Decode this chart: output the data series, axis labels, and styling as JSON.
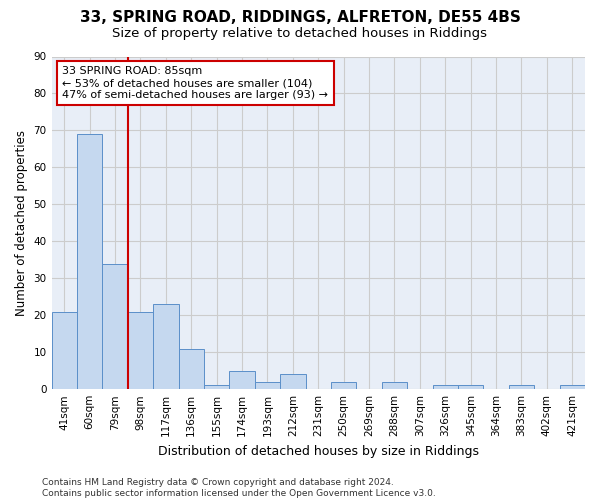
{
  "title": "33, SPRING ROAD, RIDDINGS, ALFRETON, DE55 4BS",
  "subtitle": "Size of property relative to detached houses in Riddings",
  "xlabel": "Distribution of detached houses by size in Riddings",
  "ylabel": "Number of detached properties",
  "categories": [
    "41sqm",
    "60sqm",
    "79sqm",
    "98sqm",
    "117sqm",
    "136sqm",
    "155sqm",
    "174sqm",
    "193sqm",
    "212sqm",
    "231sqm",
    "250sqm",
    "269sqm",
    "288sqm",
    "307sqm",
    "326sqm",
    "345sqm",
    "364sqm",
    "383sqm",
    "402sqm",
    "421sqm"
  ],
  "values": [
    21,
    69,
    34,
    21,
    23,
    11,
    1,
    5,
    2,
    4,
    0,
    2,
    0,
    2,
    0,
    1,
    1,
    0,
    1,
    0,
    1
  ],
  "bar_color": "#c5d8ef",
  "bar_edge_color": "#5b8fc9",
  "vline_x_index": 2.5,
  "vline_color": "#cc0000",
  "annotation_text": "33 SPRING ROAD: 85sqm\n← 53% of detached houses are smaller (104)\n47% of semi-detached houses are larger (93) →",
  "annotation_box_color": "#ffffff",
  "annotation_box_edge_color": "#cc0000",
  "ylim": [
    0,
    90
  ],
  "yticks": [
    0,
    10,
    20,
    30,
    40,
    50,
    60,
    70,
    80,
    90
  ],
  "grid_color": "#cccccc",
  "background_color": "#e8eef7",
  "footer": "Contains HM Land Registry data © Crown copyright and database right 2024.\nContains public sector information licensed under the Open Government Licence v3.0.",
  "title_fontsize": 11,
  "subtitle_fontsize": 9.5,
  "ylabel_fontsize": 8.5,
  "xlabel_fontsize": 9,
  "tick_fontsize": 7.5,
  "annot_fontsize": 8,
  "footer_fontsize": 6.5
}
